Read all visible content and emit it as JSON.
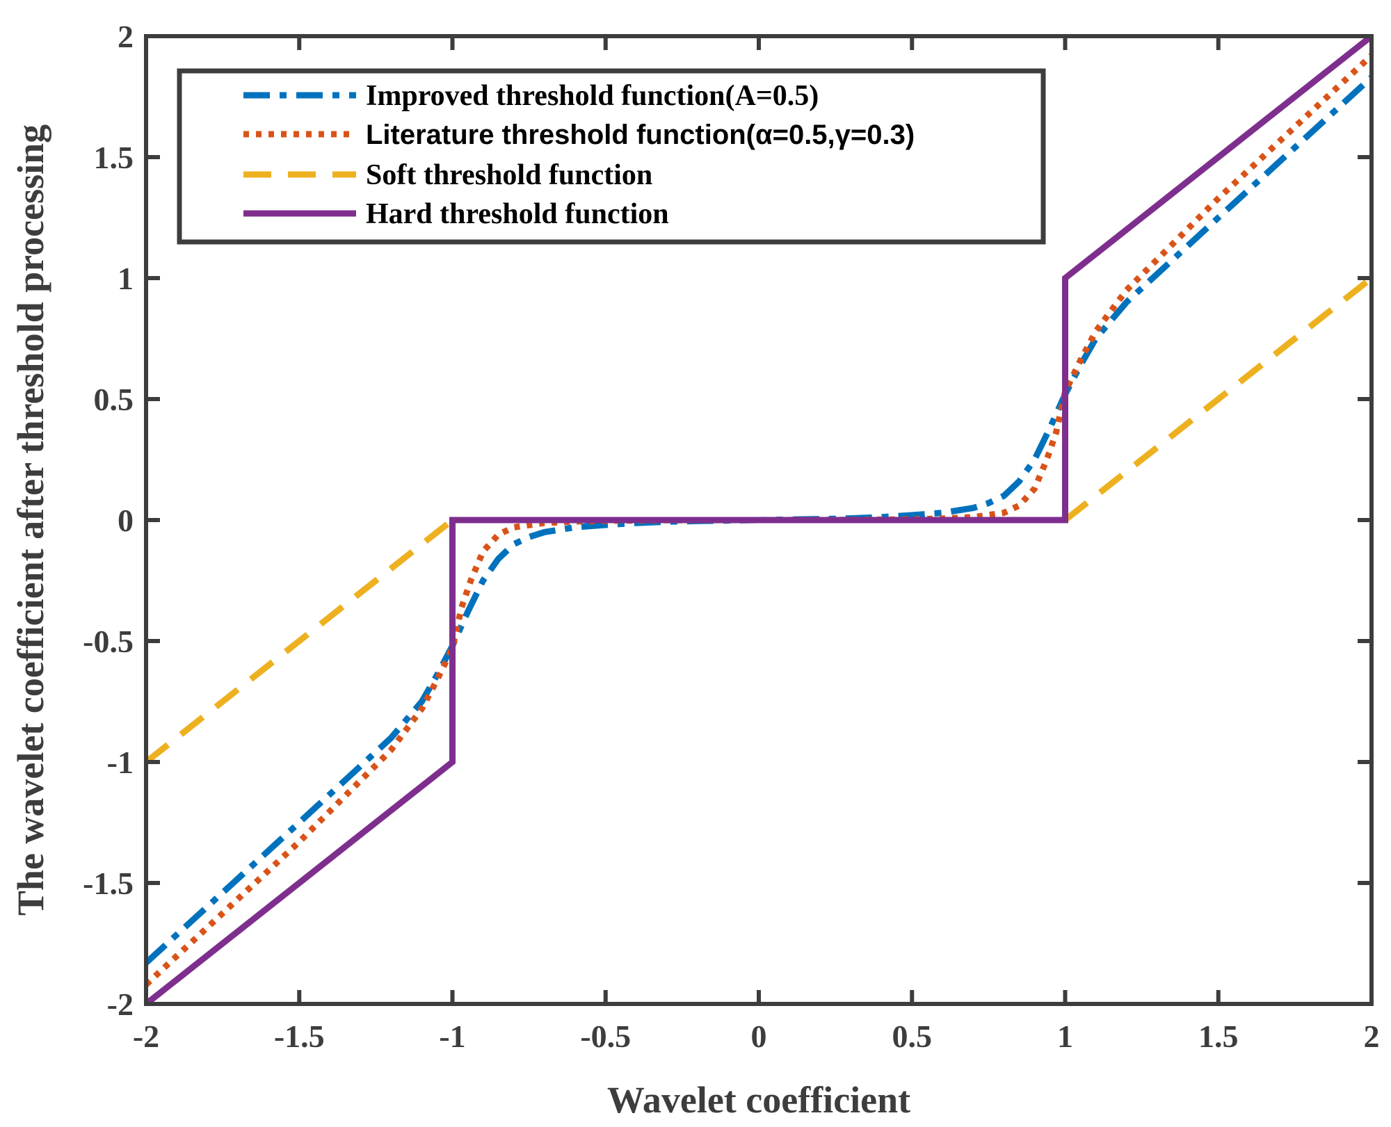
{
  "chart_data": {
    "type": "line",
    "xlabel": "Wavelet coefficient",
    "ylabel": "The wavelet coefficient after threshold processing",
    "xlim": [
      -2,
      2
    ],
    "ylim": [
      -2,
      2
    ],
    "xticks": [
      -2,
      -1.5,
      -1,
      -0.5,
      0,
      0.5,
      1,
      1.5,
      2
    ],
    "yticks": [
      -2,
      -1.5,
      -1,
      -0.5,
      0,
      0.5,
      1,
      1.5,
      2
    ],
    "xtick_labels": [
      "-2",
      "-1.5",
      "-1",
      "-0.5",
      "0",
      "0.5",
      "1",
      "1.5",
      "2"
    ],
    "ytick_labels": [
      "-2",
      "-1.5",
      "-1",
      "-0.5",
      "0",
      "0.5",
      "1",
      "1.5",
      "2"
    ],
    "grid": false,
    "legend_position": "top-left",
    "series": [
      {
        "name": "Improved threshold function(A=0.5)",
        "color": "#0072BD",
        "style": "dashdot",
        "x": [
          -2,
          -1.5,
          -1.2,
          -1.1,
          -1.05,
          -1.0,
          -0.95,
          -0.9,
          -0.85,
          -0.8,
          -0.75,
          -0.7,
          -0.6,
          -0.5,
          -0.4,
          -0.3,
          -0.2,
          -0.1,
          0,
          0.1,
          0.2,
          0.3,
          0.4,
          0.5,
          0.6,
          0.7,
          0.75,
          0.8,
          0.85,
          0.9,
          0.95,
          1.0,
          1.05,
          1.1,
          1.2,
          1.5,
          2
        ],
        "y": [
          -1.83,
          -1.25,
          -0.9,
          -0.75,
          -0.64,
          -0.52,
          -0.38,
          -0.25,
          -0.16,
          -0.1,
          -0.07,
          -0.05,
          -0.03,
          -0.02,
          -0.012,
          -0.007,
          -0.004,
          -0.002,
          0,
          0.002,
          0.004,
          0.007,
          0.012,
          0.02,
          0.03,
          0.05,
          0.07,
          0.1,
          0.16,
          0.25,
          0.38,
          0.52,
          0.64,
          0.75,
          0.9,
          1.25,
          1.83
        ]
      },
      {
        "name": "Literature threshold function(α=0.5,γ=0.3)",
        "color": "#D95319",
        "style": "dotted",
        "x": [
          -2,
          -1.5,
          -1.2,
          -1.1,
          -1.05,
          -1.0,
          -0.97,
          -0.94,
          -0.9,
          -0.85,
          -0.8,
          -0.7,
          -0.6,
          -0.5,
          -0.3,
          0,
          0.3,
          0.5,
          0.6,
          0.7,
          0.8,
          0.85,
          0.9,
          0.94,
          0.97,
          1.0,
          1.05,
          1.1,
          1.2,
          1.5,
          2
        ],
        "y": [
          -1.92,
          -1.33,
          -0.95,
          -0.78,
          -0.66,
          -0.53,
          -0.36,
          -0.25,
          -0.13,
          -0.06,
          -0.03,
          -0.012,
          -0.006,
          -0.003,
          -0.001,
          0,
          0.001,
          0.003,
          0.006,
          0.012,
          0.03,
          0.06,
          0.13,
          0.25,
          0.36,
          0.53,
          0.66,
          0.78,
          0.95,
          1.33,
          1.92
        ]
      },
      {
        "name": "Soft threshold function",
        "color": "#EDB120",
        "style": "dashed",
        "segments": [
          {
            "x": [
              -2,
              -1
            ],
            "y": [
              -1,
              0
            ]
          },
          {
            "x": [
              1,
              2
            ],
            "y": [
              0,
              1
            ]
          }
        ]
      },
      {
        "name": "Hard threshold function",
        "color": "#7E2F8E",
        "style": "solid",
        "x": [
          -2,
          -1,
          -1,
          1,
          1,
          2
        ],
        "y": [
          -2,
          -1,
          0,
          0,
          1,
          2
        ]
      }
    ]
  }
}
